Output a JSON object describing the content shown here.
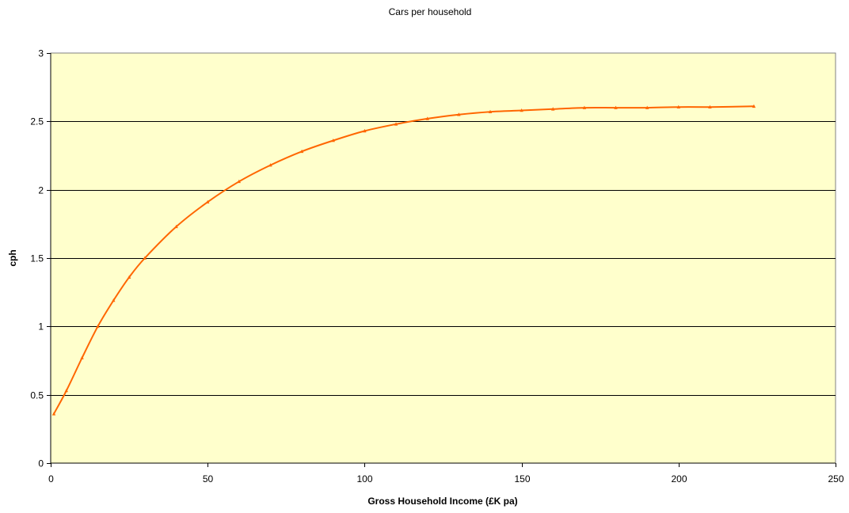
{
  "chart_data": {
    "type": "line",
    "title": "Cars per household",
    "xlabel": "Gross Household Income (£K pa)",
    "ylabel": "cph",
    "xlim": [
      0,
      250
    ],
    "ylim": [
      0,
      3
    ],
    "xticks": [
      0,
      50,
      100,
      150,
      200,
      250
    ],
    "yticks": [
      0,
      0.5,
      1,
      1.5,
      2,
      2.5,
      3
    ],
    "grid": "horizontal",
    "legend": "none",
    "plot_background": "#ffffcc",
    "series": [
      {
        "color": "#ff6600",
        "style": "line-with-triangle-markers",
        "x": [
          1,
          5,
          10,
          15,
          20,
          25,
          30,
          40,
          50,
          60,
          70,
          80,
          90,
          100,
          110,
          120,
          130,
          140,
          150,
          160,
          170,
          180,
          190,
          200,
          210,
          224
        ],
        "y": [
          0.36,
          0.53,
          0.77,
          1.0,
          1.19,
          1.36,
          1.5,
          1.73,
          1.91,
          2.06,
          2.18,
          2.28,
          2.36,
          2.43,
          2.48,
          2.52,
          2.55,
          2.57,
          2.58,
          2.59,
          2.6,
          2.6,
          2.6,
          2.605,
          2.605,
          2.61
        ]
      }
    ]
  }
}
